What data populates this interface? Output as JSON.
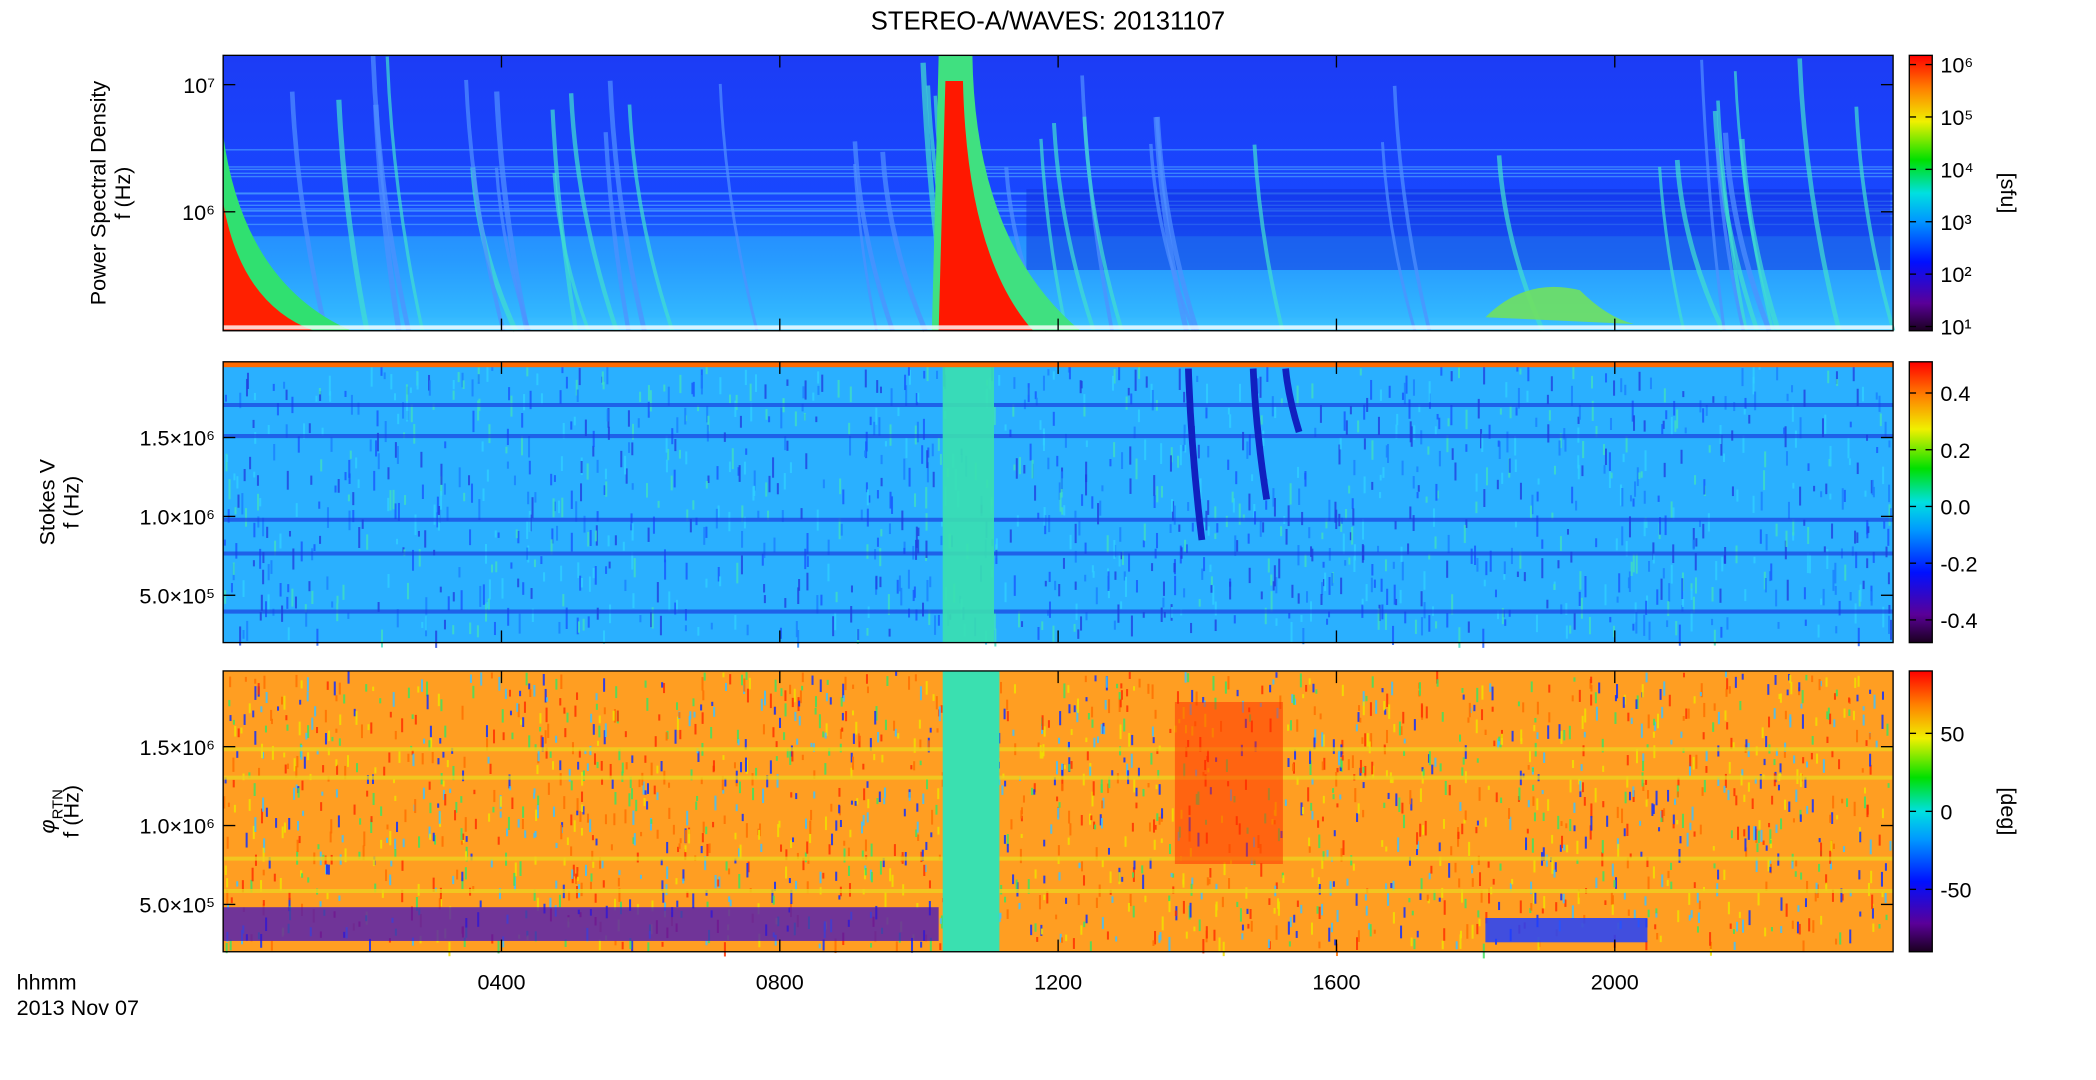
{
  "chart_data": {
    "type": "spectrogram",
    "title": "STEREO-A/WAVES: 20131107",
    "x_labels": [
      "hhmm",
      "2013 Nov 07"
    ],
    "xlim": [
      0,
      24
    ],
    "xticks": [
      {
        "value": 4,
        "label": "0400"
      },
      {
        "value": 8,
        "label": "0800"
      },
      {
        "value": 12,
        "label": "1200"
      },
      {
        "value": 16,
        "label": "1600"
      },
      {
        "value": 20,
        "label": "2000"
      }
    ],
    "panels": [
      {
        "ylabel": "Power Spectral Density",
        "ylabel2": "f (Hz)",
        "log_y": true,
        "ylim": [
          116000,
          17000000
        ],
        "yticks": [
          {
            "value": 1000000,
            "label": "10⁶"
          },
          {
            "value": 10000000,
            "label": "10⁷"
          }
        ],
        "colorbar": {
          "label": "[sfu]",
          "log": true,
          "lim": [
            8.3,
            1500000
          ],
          "ticks": [
            {
              "value": 10,
              "label": "10¹"
            },
            {
              "value": 100,
              "label": "10²"
            },
            {
              "value": 1000,
              "label": "10³"
            },
            {
              "value": 10000,
              "label": "10⁴"
            },
            {
              "value": 100000,
              "label": "10⁵"
            },
            {
              "value": 1000000,
              "label": "10⁶"
            }
          ]
        }
      },
      {
        "ylabel": "Stokes V",
        "ylabel2": "f (Hz)",
        "log_y": false,
        "ylim": [
          200000,
          1980000
        ],
        "yticks": [
          {
            "value": 500000,
            "label": "5.0×10⁵"
          },
          {
            "value": 1000000,
            "label": "1.0×10⁶"
          },
          {
            "value": 1500000,
            "label": "1.5×10⁶"
          }
        ],
        "colorbar": {
          "log": false,
          "lim": [
            -0.48,
            0.51
          ],
          "ticks": [
            0.4,
            0.2,
            {
              "value": 0,
              "label": "0.0"
            },
            -0.2,
            -0.4
          ]
        }
      },
      {
        "ylabel": "φ",
        "ylabel_subscript": "RTN",
        "ylabel2": "f (Hz)",
        "log_y": false,
        "ylim": [
          200000,
          1980000
        ],
        "yticks": [
          {
            "value": 500000,
            "label": "5.0×10⁵"
          },
          {
            "value": 1000000,
            "label": "1.0×10⁶"
          },
          {
            "value": 1500000,
            "label": "1.5×10⁶"
          }
        ],
        "colorbar": {
          "label": "[deg]",
          "log": false,
          "lim": [
            -90,
            90
          ],
          "ticks": [
            50,
            0,
            -50
          ]
        }
      }
    ]
  }
}
